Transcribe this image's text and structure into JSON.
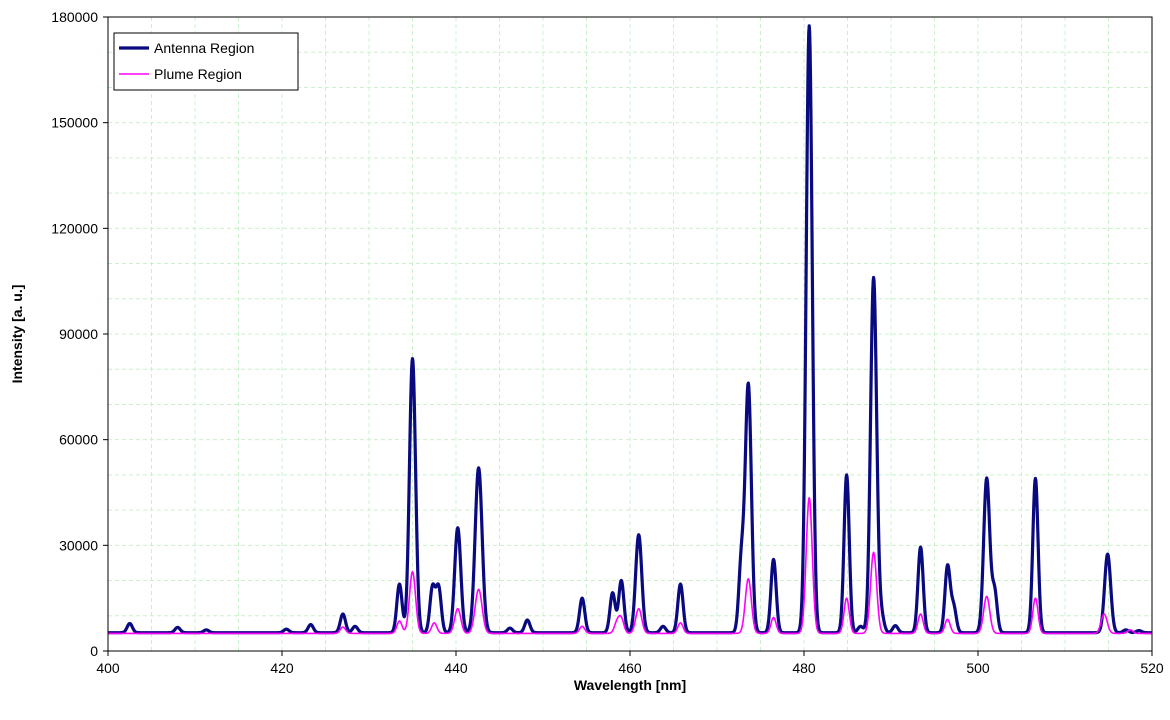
{
  "chart_data": {
    "type": "line",
    "title": "",
    "xlabel": "Wavelength [nm]",
    "ylabel": "Intensity [a. u.]",
    "xlim": [
      400,
      520
    ],
    "ylim": [
      0,
      180000
    ],
    "x_ticks": [
      400,
      420,
      440,
      460,
      480,
      500,
      520
    ],
    "y_ticks": [
      0,
      30000,
      60000,
      90000,
      120000,
      150000,
      180000
    ],
    "grid": true,
    "grid_color": "#ccf0cc",
    "legend": "top-left",
    "baseline": {
      "antenna": 5200,
      "plume": 5000
    },
    "series": [
      {
        "name": "Antenna Region",
        "color": "#0a0a80",
        "peaks": [
          {
            "x": 402.5,
            "y": 7800,
            "w": 0.3
          },
          {
            "x": 408.0,
            "y": 6700,
            "w": 0.3
          },
          {
            "x": 411.3,
            "y": 6000,
            "w": 0.3
          },
          {
            "x": 420.5,
            "y": 6200,
            "w": 0.3
          },
          {
            "x": 423.3,
            "y": 7500,
            "w": 0.3
          },
          {
            "x": 427.0,
            "y": 10500,
            "w": 0.3
          },
          {
            "x": 428.4,
            "y": 7000,
            "w": 0.3
          },
          {
            "x": 433.5,
            "y": 19000,
            "w": 0.3
          },
          {
            "x": 435.0,
            "y": 83000,
            "w": 0.35
          },
          {
            "x": 437.3,
            "y": 18000,
            "w": 0.3
          },
          {
            "x": 438.0,
            "y": 18000,
            "w": 0.3
          },
          {
            "x": 440.2,
            "y": 35000,
            "w": 0.35
          },
          {
            "x": 442.6,
            "y": 52000,
            "w": 0.4
          },
          {
            "x": 446.2,
            "y": 6500,
            "w": 0.3
          },
          {
            "x": 448.2,
            "y": 8800,
            "w": 0.3
          },
          {
            "x": 454.5,
            "y": 15000,
            "w": 0.3
          },
          {
            "x": 458.0,
            "y": 16500,
            "w": 0.3
          },
          {
            "x": 459.0,
            "y": 20000,
            "w": 0.3
          },
          {
            "x": 461.0,
            "y": 33000,
            "w": 0.35
          },
          {
            "x": 463.8,
            "y": 7000,
            "w": 0.3
          },
          {
            "x": 465.8,
            "y": 19000,
            "w": 0.3
          },
          {
            "x": 472.8,
            "y": 25000,
            "w": 0.3
          },
          {
            "x": 473.6,
            "y": 75500,
            "w": 0.35
          },
          {
            "x": 476.5,
            "y": 26000,
            "w": 0.3
          },
          {
            "x": 480.6,
            "y": 177500,
            "w": 0.35
          },
          {
            "x": 484.9,
            "y": 50000,
            "w": 0.3
          },
          {
            "x": 486.5,
            "y": 7000,
            "w": 0.3
          },
          {
            "x": 488.0,
            "y": 106000,
            "w": 0.35
          },
          {
            "x": 488.9,
            "y": 10000,
            "w": 0.3
          },
          {
            "x": 490.5,
            "y": 7200,
            "w": 0.3
          },
          {
            "x": 493.4,
            "y": 29500,
            "w": 0.3
          },
          {
            "x": 496.5,
            "y": 24000,
            "w": 0.3
          },
          {
            "x": 497.2,
            "y": 12500,
            "w": 0.3
          },
          {
            "x": 501.0,
            "y": 49000,
            "w": 0.35
          },
          {
            "x": 501.9,
            "y": 17000,
            "w": 0.3
          },
          {
            "x": 506.6,
            "y": 49000,
            "w": 0.3
          },
          {
            "x": 514.9,
            "y": 27500,
            "w": 0.35
          },
          {
            "x": 517.0,
            "y": 6000,
            "w": 0.3
          },
          {
            "x": 518.5,
            "y": 5800,
            "w": 0.3
          }
        ]
      },
      {
        "name": "Plume Region",
        "color": "#ff00ff",
        "peaks": [
          {
            "x": 427.0,
            "y": 6800,
            "w": 0.3
          },
          {
            "x": 433.5,
            "y": 8500,
            "w": 0.3
          },
          {
            "x": 435.0,
            "y": 22500,
            "w": 0.35
          },
          {
            "x": 437.5,
            "y": 8000,
            "w": 0.3
          },
          {
            "x": 440.2,
            "y": 12000,
            "w": 0.35
          },
          {
            "x": 442.6,
            "y": 17500,
            "w": 0.4
          },
          {
            "x": 454.5,
            "y": 7000,
            "w": 0.3
          },
          {
            "x": 458.5,
            "y": 8000,
            "w": 0.3
          },
          {
            "x": 459.0,
            "y": 9000,
            "w": 0.3
          },
          {
            "x": 461.0,
            "y": 12000,
            "w": 0.35
          },
          {
            "x": 465.8,
            "y": 8000,
            "w": 0.3
          },
          {
            "x": 473.6,
            "y": 20500,
            "w": 0.35
          },
          {
            "x": 476.5,
            "y": 9500,
            "w": 0.3
          },
          {
            "x": 480.6,
            "y": 43500,
            "w": 0.35
          },
          {
            "x": 484.9,
            "y": 15000,
            "w": 0.3
          },
          {
            "x": 488.0,
            "y": 28000,
            "w": 0.35
          },
          {
            "x": 493.4,
            "y": 10500,
            "w": 0.3
          },
          {
            "x": 496.5,
            "y": 9000,
            "w": 0.3
          },
          {
            "x": 501.0,
            "y": 15500,
            "w": 0.35
          },
          {
            "x": 506.6,
            "y": 15000,
            "w": 0.3
          },
          {
            "x": 514.5,
            "y": 10500,
            "w": 0.35
          },
          {
            "x": 517.5,
            "y": 6000,
            "w": 0.3
          }
        ]
      }
    ]
  }
}
